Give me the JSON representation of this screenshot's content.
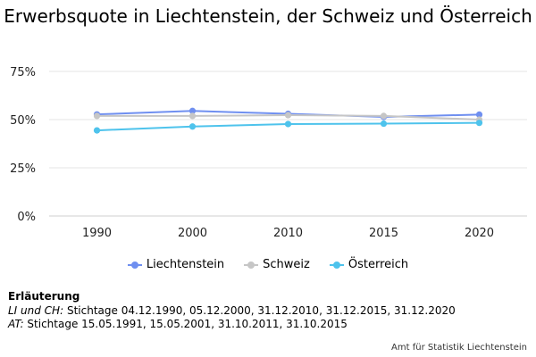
{
  "chart_data": {
    "type": "line",
    "title": "Erwerbsquote in Liechtenstein, der Schweiz und Österreich",
    "categories": [
      "1990",
      "2000",
      "2010",
      "2015",
      "2020"
    ],
    "ylim": [
      0,
      75
    ],
    "yticks": [
      0,
      25,
      50,
      75
    ],
    "ytick_labels": [
      "0%",
      "25%",
      "50%",
      "75%"
    ],
    "grid": true,
    "legend_position": "bottom",
    "series": [
      {
        "name": "Liechtenstein",
        "color": "#6f8ff0",
        "values": [
          52.7,
          54.5,
          53.0,
          51.4,
          52.6
        ]
      },
      {
        "name": "Schweiz",
        "color": "#c6c6c6",
        "values": [
          51.9,
          51.9,
          52.3,
          51.9,
          50.0
        ]
      },
      {
        "name": "Österreich",
        "color": "#4ec3ec",
        "values": [
          44.4,
          46.4,
          47.7,
          47.9,
          48.3
        ]
      }
    ]
  },
  "notes": {
    "heading": "Erläuterung",
    "line1_prefix": "LI und CH:",
    "line1_text": " Stichtage 04.12.1990, 05.12.2000, 31.12.2010, 31.12.2015, 31.12.2020",
    "line2_prefix": "AT:",
    "line2_text": " Stichtage 15.05.1991, 15.05.2001, 31.10.2011, 31.10.2015"
  },
  "source": "Amt für Statistik Liechtenstein"
}
